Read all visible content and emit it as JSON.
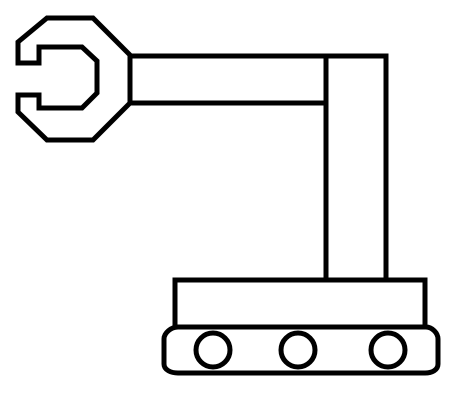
{
  "colors": {
    "stroke": "#000000",
    "fill": "#ffffff",
    "background": "#ffffff"
  },
  "icons": {
    "main": "robotic-arm-icon"
  }
}
